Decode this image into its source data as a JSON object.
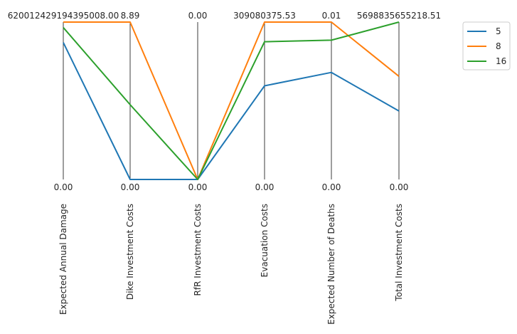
{
  "chart_data": {
    "type": "parallel_coordinates",
    "axes": [
      {
        "name": "Expected Annual Damage",
        "min_label": "0.00",
        "max_label": "620012429194395008.00"
      },
      {
        "name": "Dike Investment Costs",
        "min_label": "0.00",
        "max_label": "8.89"
      },
      {
        "name": "RfR Investment Costs",
        "min_label": "0.00",
        "max_label": "0.00"
      },
      {
        "name": "Evacuation Costs",
        "min_label": "0.00",
        "max_label": "309080375.53"
      },
      {
        "name": "Expected Number of Deaths",
        "min_label": "0.00",
        "max_label": "0.01"
      },
      {
        "name": "Total Investment Costs",
        "min_label": "0.00",
        "max_label": "5698835655218.51"
      }
    ],
    "series": [
      {
        "name": "5",
        "color": "#1f77b4",
        "values": [
          0.87,
          0.0,
          0.0,
          0.595,
          0.68,
          0.435
        ]
      },
      {
        "name": "8",
        "color": "#ff7f0e",
        "values": [
          1.0,
          1.0,
          0.0,
          1.0,
          1.0,
          0.655
        ]
      },
      {
        "name": "16",
        "color": "#2ca02c",
        "values": [
          0.965,
          0.475,
          0.0,
          0.875,
          0.885,
          1.0
        ]
      }
    ],
    "value_scale": "normalized 0-1 per axis",
    "legend": "top-right",
    "grid": false
  }
}
